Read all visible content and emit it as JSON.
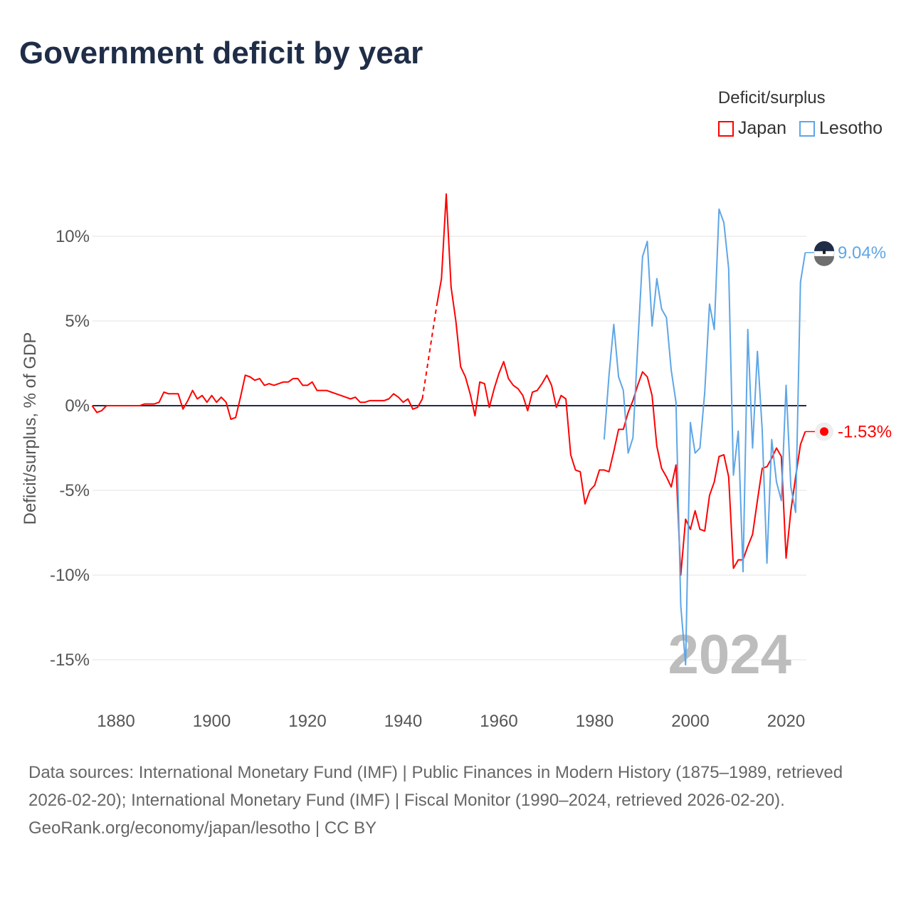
{
  "chart_data": {
    "type": "line",
    "title": "Government deficit by year",
    "xlabel": "",
    "ylabel": "Deficit/surplus, % of GDP",
    "xlim": [
      1875,
      2024
    ],
    "ylim": [
      -17,
      13
    ],
    "x_ticks": [
      "1880",
      "1900",
      "1920",
      "1940",
      "1960",
      "1980",
      "2000",
      "2020"
    ],
    "x_tick_values": [
      1880,
      1900,
      1920,
      1940,
      1960,
      1980,
      2000,
      2020
    ],
    "y_ticks": [
      "10%",
      "5%",
      "0%",
      "-5%",
      "-10%",
      "-15%"
    ],
    "y_tick_values": [
      10,
      5,
      0,
      -5,
      -10,
      -15
    ],
    "grid": true,
    "legend": {
      "title": "Deficit/surplus",
      "placement": "top-right"
    },
    "year_watermark": "2024",
    "series": [
      {
        "name": "Japan",
        "color": "#ff0000",
        "end_label": "-1.53%",
        "start_year": 1875,
        "gap_years": [
          1945,
          1946
        ],
        "values": [
          0,
          -0.4,
          -0.3,
          0,
          0,
          0,
          0,
          0,
          0,
          0,
          0,
          0.1,
          0.1,
          0.1,
          0.2,
          0.8,
          0.7,
          0.7,
          0.7,
          -0.2,
          0.3,
          0.9,
          0.4,
          0.6,
          0.2,
          0.6,
          0.2,
          0.5,
          0.2,
          -0.8,
          -0.7,
          0.5,
          1.8,
          1.7,
          1.5,
          1.6,
          1.2,
          1.3,
          1.2,
          1.3,
          1.4,
          1.4,
          1.6,
          1.6,
          1.2,
          1.2,
          1.4,
          0.9,
          0.9,
          0.9,
          0.8,
          0.7,
          0.6,
          0.5,
          0.4,
          0.5,
          0.2,
          0.2,
          0.3,
          0.3,
          0.3,
          0.3,
          0.4,
          0.7,
          0.5,
          0.2,
          0.4,
          -0.2,
          -0.1,
          0.4,
          null,
          null,
          5.9,
          7.5,
          12.5,
          7.0,
          5.0,
          2.3,
          1.7,
          0.7,
          -0.6,
          1.4,
          1.3,
          -0.1,
          1.0,
          1.9,
          2.6,
          1.6,
          1.2,
          1.0,
          0.6,
          -0.3,
          0.8,
          0.9,
          1.3,
          1.8,
          1.2,
          -0.1,
          0.6,
          0.4,
          -2.9,
          -3.8,
          -3.9,
          -5.8,
          -5.0,
          -4.7,
          -3.8,
          -3.8,
          -3.9,
          -2.7,
          -1.4,
          -1.4,
          -0.4,
          0.3,
          1.2,
          2.0,
          1.7,
          0.6,
          -2.4,
          -3.7,
          -4.2,
          -4.8,
          -3.5,
          -10.0,
          -6.7,
          -7.3,
          -6.2,
          -7.3,
          -7.4,
          -5.3,
          -4.5,
          -3.0,
          -2.9,
          -4.2,
          -9.6,
          -9.1,
          -9.1,
          -8.3,
          -7.6,
          -5.6,
          -3.7,
          -3.6,
          -3.1,
          -2.5,
          -3.0,
          -9.0,
          -6.2,
          -4.2,
          -2.3,
          -1.53
        ]
      },
      {
        "name": "Lesotho",
        "color": "#5ea6e6",
        "end_label": "9.04%",
        "start_year": 1982,
        "values": [
          -2.0,
          1.8,
          4.8,
          1.7,
          0.9,
          -2.8,
          -1.9,
          3.5,
          8.8,
          9.7,
          4.7,
          7.5,
          5.7,
          5.2,
          2.1,
          0.2,
          -11.8,
          -15.3,
          -1.0,
          -2.8,
          -2.5,
          0.8,
          6.0,
          4.5,
          11.6,
          10.8,
          8.1,
          -4.1,
          -1.5,
          -9.8,
          4.5,
          -2.5,
          3.2,
          -1.4,
          -9.3,
          -2.0,
          -4.5,
          -5.6,
          1.2,
          -4.8,
          -6.3,
          7.3,
          9.04
        ]
      }
    ]
  },
  "sources": {
    "text": "Data sources: International Monetary Fund (IMF) | Public Finances in Modern History (1875–1989, retrieved 2026-02-20); International Monetary Fund (IMF) | Fiscal Monitor (1990–2024, retrieved 2026-02-20).",
    "link": "GeoRank.org/economy/japan/lesotho | CC BY"
  }
}
